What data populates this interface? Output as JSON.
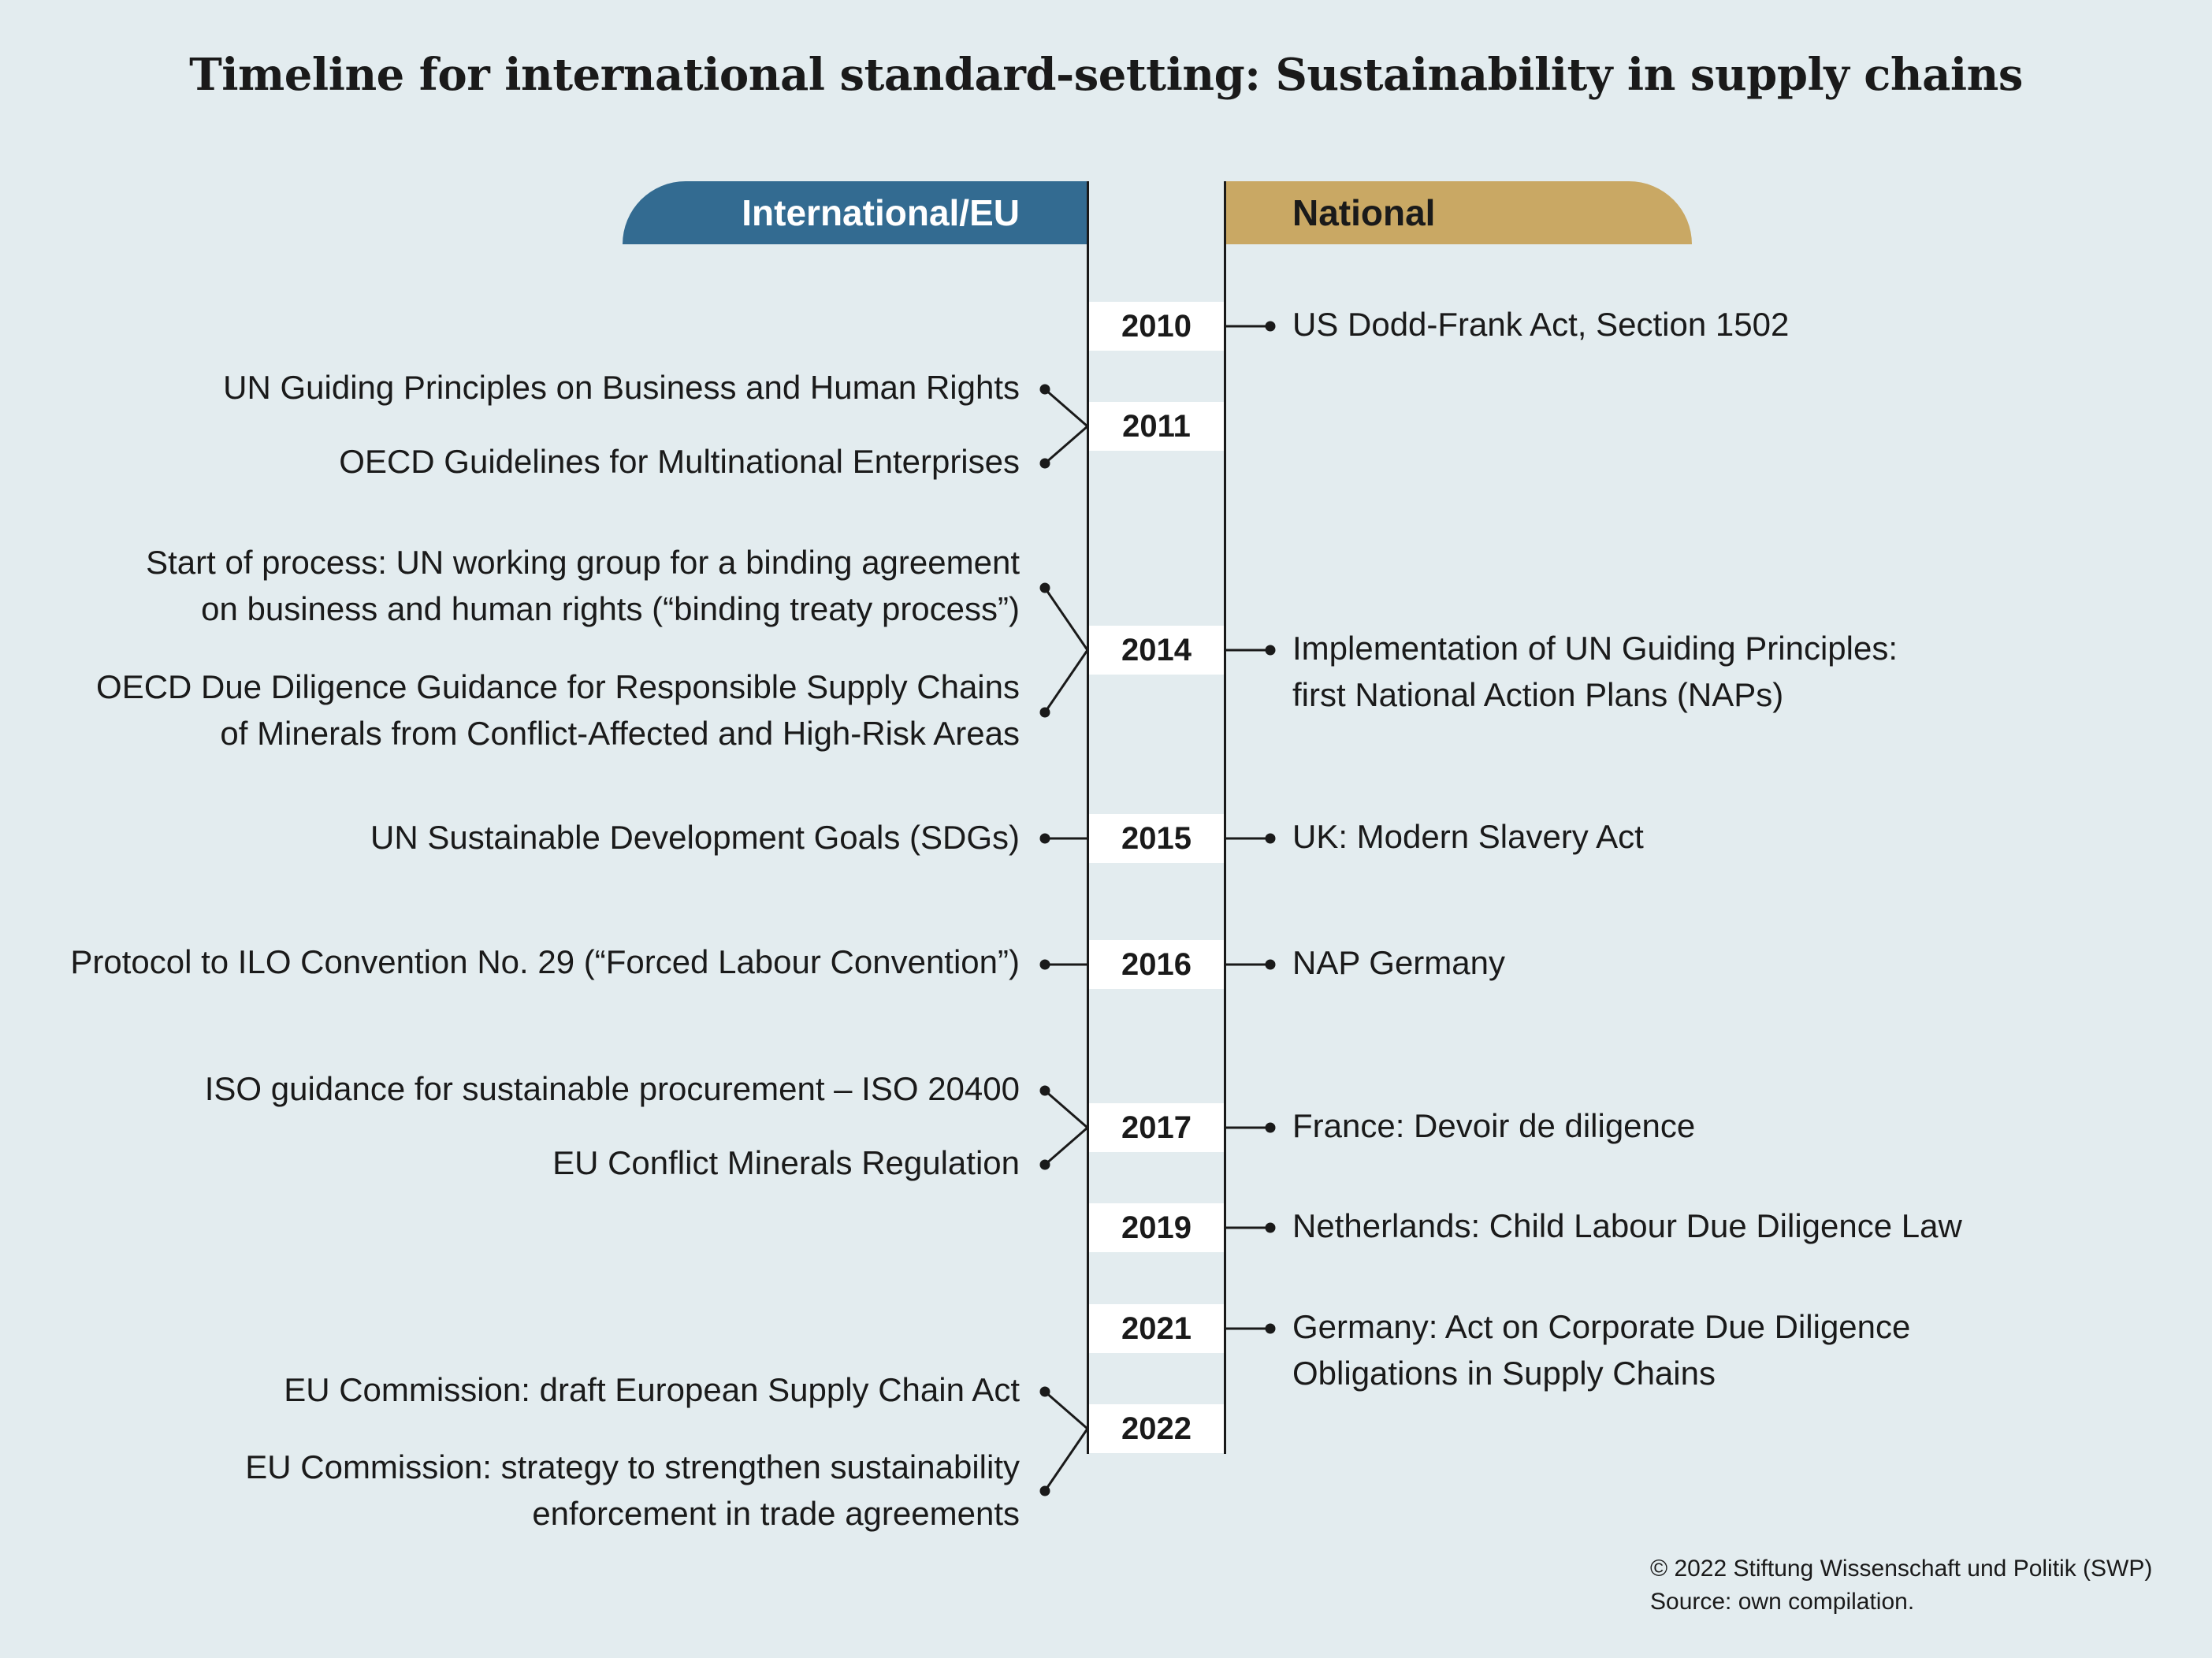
{
  "title": "Timeline for international standard-setting: Sustainability in supply chains",
  "columns": {
    "international": "International/EU",
    "national": "National"
  },
  "colors": {
    "background": "#e3ecef",
    "international_header": "#336b91",
    "national_header": "#c9a864",
    "year_box": "#ffffff",
    "line": "#1a1a1a"
  },
  "years": [
    "2010",
    "2011",
    "2014",
    "2015",
    "2016",
    "2017",
    "2019",
    "2021",
    "2022"
  ],
  "international_items": [
    {
      "year": "2011",
      "lines": [
        "UN Guiding Principles on Business and Human Rights"
      ]
    },
    {
      "year": "2011",
      "lines": [
        "OECD Guidelines for Multinational Enterprises"
      ]
    },
    {
      "year": "2014",
      "lines": [
        "Start of process: UN working group for a binding agreement",
        "on business and human rights (“binding treaty process”)"
      ]
    },
    {
      "year": "2014",
      "lines": [
        "OECD Due Diligence Guidance for Responsible Supply Chains",
        "of Minerals from Conflict-Affected and High-Risk Areas"
      ]
    },
    {
      "year": "2015",
      "lines": [
        "UN Sustainable Development Goals (SDGs)"
      ]
    },
    {
      "year": "2016",
      "lines": [
        "Protocol to ILO Convention No. 29 (“Forced Labour Convention”)"
      ]
    },
    {
      "year": "2017",
      "lines": [
        "ISO guidance for sustainable procurement – ISO 20400"
      ]
    },
    {
      "year": "2017",
      "lines": [
        "EU Conflict Minerals Regulation"
      ]
    },
    {
      "year": "2022",
      "lines": [
        "EU Commission: draft European Supply Chain Act"
      ]
    },
    {
      "year": "2022",
      "lines": [
        "EU Commission: strategy to strengthen sustainability",
        "enforcement in trade agreements"
      ]
    }
  ],
  "national_items": [
    {
      "year": "2010",
      "lines": [
        "US Dodd-Frank Act, Section 1502"
      ]
    },
    {
      "year": "2014",
      "lines": [
        "Implementation of UN Guiding Principles:",
        "first National Action Plans (NAPs)"
      ]
    },
    {
      "year": "2015",
      "lines": [
        "UK: Modern Slavery Act"
      ]
    },
    {
      "year": "2016",
      "lines": [
        "NAP Germany"
      ]
    },
    {
      "year": "2017",
      "lines": [
        "France: Devoir de diligence"
      ]
    },
    {
      "year": "2019",
      "lines": [
        "Netherlands: Child Labour Due Diligence Law"
      ]
    },
    {
      "year": "2021",
      "lines": [
        "Germany: Act on Corporate Due Diligence",
        "Obligations in Supply Chains"
      ]
    }
  ],
  "credit": {
    "copyright": "© 2022 Stiftung Wissenschaft und Politik (SWP)",
    "source": "Source: own compilation."
  }
}
